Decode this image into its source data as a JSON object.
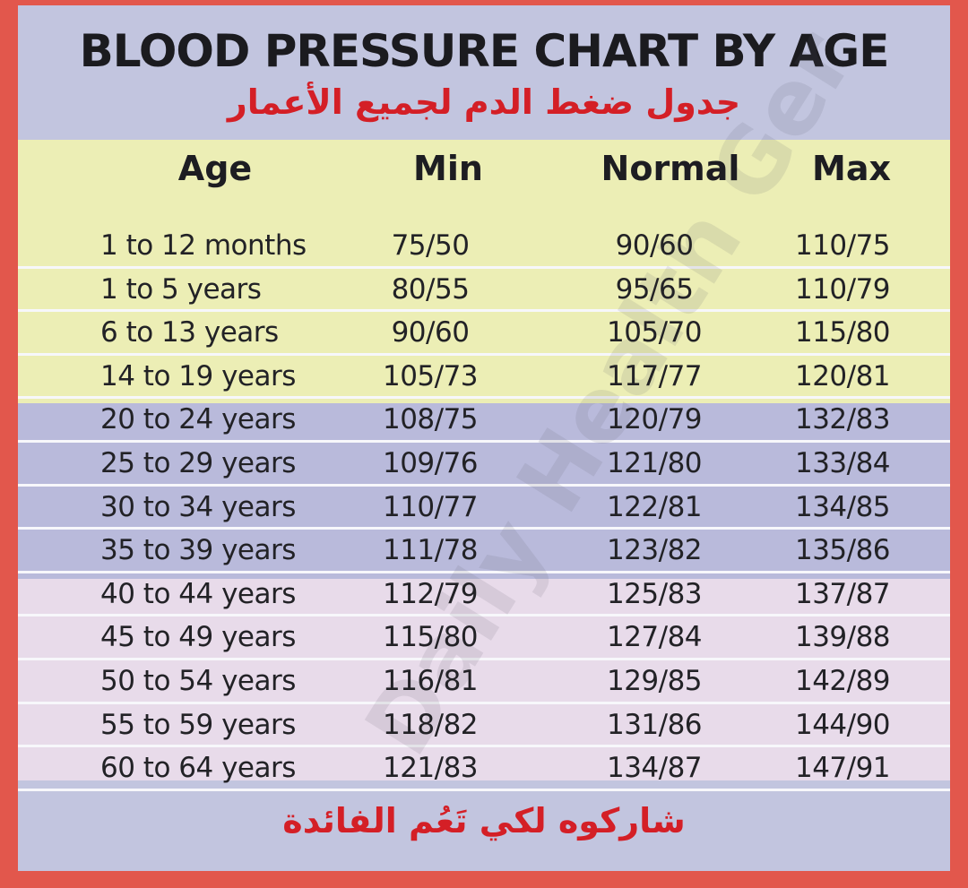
{
  "title": "BLOOD PRESSURE CHART BY AGE",
  "subtitle_ar": "جدول ضغط الدم لجميع الأعمار",
  "footer_ar": "شاركوه لكي تَعُم الفائدة",
  "watermark": "Daily Health Ger",
  "colors": {
    "frame": "#e2574c",
    "header_band": "#c2c5df",
    "rows_1_4": "#eceeb5",
    "rows_5_8": "#b9badb",
    "rows_9_13": "#e8dbea",
    "accent_red": "#d41f26"
  },
  "chart_data": {
    "type": "table",
    "columns": [
      "Age",
      "Min",
      "Normal",
      "Max"
    ],
    "rows": [
      [
        "1 to 12 months",
        "75/50",
        "90/60",
        "110/75"
      ],
      [
        "1 to 5 years",
        "80/55",
        "95/65",
        "110/79"
      ],
      [
        "6 to 13 years",
        "90/60",
        "105/70",
        "115/80"
      ],
      [
        "14 to 19 years",
        "105/73",
        "117/77",
        "120/81"
      ],
      [
        "20 to 24 years",
        "108/75",
        "120/79",
        "132/83"
      ],
      [
        "25 to 29 years",
        "109/76",
        "121/80",
        "133/84"
      ],
      [
        "30 to 34 years",
        "110/77",
        "122/81",
        "134/85"
      ],
      [
        "35 to 39 years",
        "111/78",
        "123/82",
        "135/86"
      ],
      [
        "40 to 44 years",
        "112/79",
        "125/83",
        "137/87"
      ],
      [
        "45 to 49 years",
        "115/80",
        "127/84",
        "139/88"
      ],
      [
        "50 to 54 years",
        "116/81",
        "129/85",
        "142/89"
      ],
      [
        "55 to 59 years",
        "118/82",
        "131/86",
        "144/90"
      ],
      [
        "60 to 64 years",
        "121/83",
        "134/87",
        "147/91"
      ]
    ]
  }
}
